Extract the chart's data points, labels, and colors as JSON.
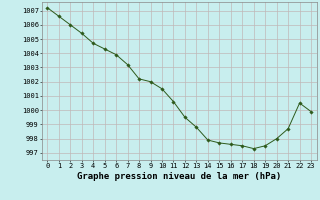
{
  "x": [
    0,
    1,
    2,
    3,
    4,
    5,
    6,
    7,
    8,
    9,
    10,
    11,
    12,
    13,
    14,
    15,
    16,
    17,
    18,
    19,
    20,
    21,
    22,
    23
  ],
  "y": [
    1007.2,
    1006.6,
    1006.0,
    1005.4,
    1004.7,
    1004.3,
    1003.9,
    1003.2,
    1002.2,
    1002.0,
    1001.5,
    1000.6,
    999.5,
    998.8,
    997.9,
    997.7,
    997.6,
    997.5,
    997.3,
    997.5,
    998.0,
    998.7,
    1000.5,
    999.9
  ],
  "line_color": "#2d5a1b",
  "marker_color": "#2d5a1b",
  "bg_color": "#c8eeee",
  "grid_color": "#c0b8b8",
  "ylabel_ticks": [
    997,
    998,
    999,
    1000,
    1001,
    1002,
    1003,
    1004,
    1005,
    1006,
    1007
  ],
  "xlabel": "Graphe pression niveau de la mer (hPa)",
  "ylim": [
    996.5,
    1007.6
  ],
  "xlim": [
    -0.5,
    23.5
  ],
  "tick_fontsize": 5.0,
  "xlabel_fontsize": 6.5
}
